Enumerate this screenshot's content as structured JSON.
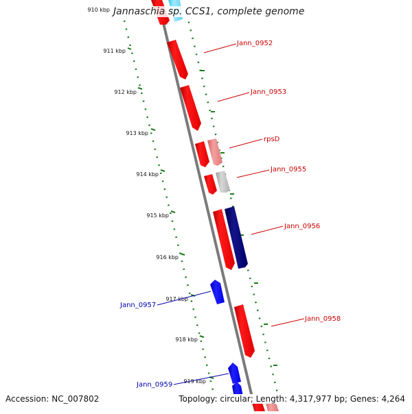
{
  "title": "Jannaschia sp. CCS1, complete genome",
  "footer": {
    "accession": "Accession: NC_007802",
    "summary": "Topology: circular; Length: 4,317,977 bp; Genes: 4,264"
  },
  "ruler": {
    "labels": [
      "910 kbp",
      "911 kbp",
      "912 kbp",
      "913 kbp",
      "914 kbp",
      "915 kbp",
      "916 kbp",
      "917 kbp",
      "918 kbp",
      "919 kbp"
    ]
  },
  "genes": [
    {
      "name": "Jann_0952",
      "color": "#cc0000"
    },
    {
      "name": "Jann_0953",
      "color": "#cc0000"
    },
    {
      "name": "rpsD",
      "color": "#cc0000"
    },
    {
      "name": "Jann_0955",
      "color": "#cc0000"
    },
    {
      "name": "Jann_0956",
      "color": "#cc0000"
    },
    {
      "name": "Jann_0957",
      "color": "#0000aa"
    },
    {
      "name": "Jann_0958",
      "color": "#cc0000"
    },
    {
      "name": "Jann_0959",
      "color": "#0000aa"
    }
  ],
  "colors": {
    "forward_gene": "#ff0000",
    "reverse_gene": "#0000ff",
    "backbone": "#808080",
    "ruler_ticks": "#1a7a1a",
    "gc_dots": "#1a7a1a"
  }
}
